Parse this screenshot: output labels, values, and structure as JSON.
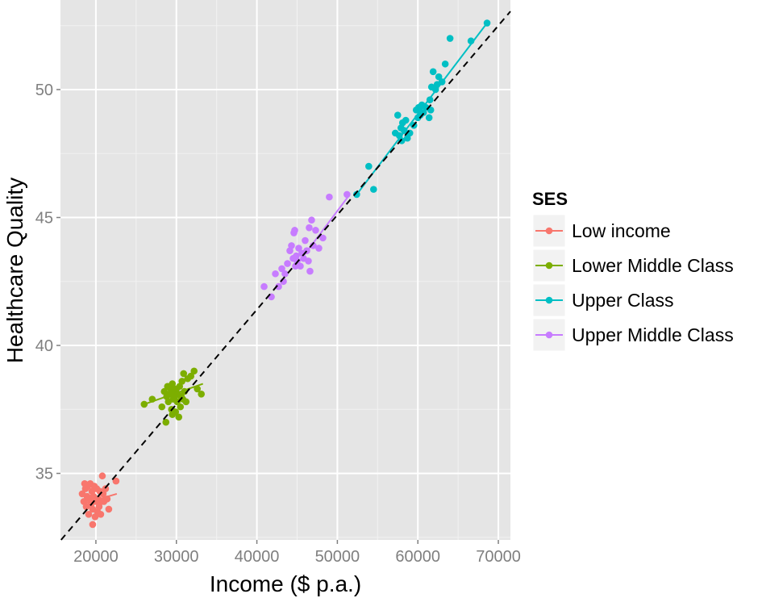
{
  "chart_data": {
    "type": "scatter",
    "title": "",
    "xlabel": "Income ($ p.a.)",
    "ylabel": "Healthcare Quality",
    "xlim": [
      15600,
      71500
    ],
    "ylim": [
      32.4,
      53.5
    ],
    "x_ticks": [
      20000,
      30000,
      40000,
      50000,
      60000,
      70000
    ],
    "y_ticks": [
      35,
      40,
      45,
      50
    ],
    "grid": true,
    "legend_title": "SES",
    "legend_position": "right",
    "reference_line": {
      "style": "dashed",
      "color": "#000000",
      "slope": 0.00037,
      "intercept": 26.6
    },
    "series": [
      {
        "name": "Low income",
        "color": "#F8766D",
        "points": [
          [
            18300,
            34.2
          ],
          [
            18500,
            33.9
          ],
          [
            18700,
            34.4
          ],
          [
            18800,
            33.7
          ],
          [
            18900,
            34.1
          ],
          [
            19000,
            34.5
          ],
          [
            19100,
            33.4
          ],
          [
            19200,
            34.0
          ],
          [
            19300,
            34.6
          ],
          [
            19400,
            33.8
          ],
          [
            19500,
            34.3
          ],
          [
            19600,
            33.6
          ],
          [
            19700,
            34.1
          ],
          [
            19800,
            34.5
          ],
          [
            19900,
            33.3
          ],
          [
            20000,
            33.9
          ],
          [
            20100,
            34.4
          ],
          [
            20200,
            33.5
          ],
          [
            20300,
            34.0
          ],
          [
            20400,
            33.7
          ],
          [
            20500,
            34.3
          ],
          [
            20600,
            33.4
          ],
          [
            20800,
            34.9
          ],
          [
            20900,
            34.2
          ],
          [
            21000,
            33.9
          ],
          [
            21200,
            34.4
          ],
          [
            21400,
            34.0
          ],
          [
            21600,
            33.6
          ],
          [
            22500,
            34.7
          ],
          [
            19600,
            33.0
          ],
          [
            18600,
            34.6
          ],
          [
            20700,
            33.9
          ]
        ],
        "fit": [
          [
            18300,
            33.8
          ],
          [
            22600,
            34.2
          ]
        ]
      },
      {
        "name": "Lower Middle Class",
        "color": "#7CAE00",
        "points": [
          [
            26000,
            37.7
          ],
          [
            27000,
            37.9
          ],
          [
            28200,
            37.6
          ],
          [
            28500,
            38.2
          ],
          [
            28700,
            37.0
          ],
          [
            28900,
            38.4
          ],
          [
            29000,
            37.8
          ],
          [
            29100,
            38.1
          ],
          [
            29300,
            38.3
          ],
          [
            29400,
            37.5
          ],
          [
            29500,
            38.5
          ],
          [
            29600,
            37.9
          ],
          [
            29700,
            38.2
          ],
          [
            29800,
            38.0
          ],
          [
            29900,
            37.4
          ],
          [
            30000,
            38.3
          ],
          [
            30100,
            37.8
          ],
          [
            30200,
            38.1
          ],
          [
            30300,
            37.2
          ],
          [
            30400,
            38.4
          ],
          [
            30500,
            37.6
          ],
          [
            30600,
            38.0
          ],
          [
            30700,
            38.6
          ],
          [
            30800,
            37.9
          ],
          [
            30900,
            38.9
          ],
          [
            31000,
            38.2
          ],
          [
            31200,
            37.8
          ],
          [
            31400,
            38.7
          ],
          [
            31800,
            38.8
          ],
          [
            32200,
            39.0
          ],
          [
            32600,
            38.3
          ],
          [
            33100,
            38.1
          ],
          [
            29500,
            37.3
          ],
          [
            28800,
            38.0
          ]
        ],
        "fit": [
          [
            26000,
            37.7
          ],
          [
            33300,
            38.5
          ]
        ]
      },
      {
        "name": "Upper Class",
        "color": "#00BFC4",
        "points": [
          [
            52400,
            45.9
          ],
          [
            53900,
            47.0
          ],
          [
            54500,
            46.1
          ],
          [
            57200,
            48.3
          ],
          [
            57500,
            49.0
          ],
          [
            57700,
            48.2
          ],
          [
            57900,
            48.5
          ],
          [
            58000,
            48.0
          ],
          [
            58100,
            48.7
          ],
          [
            58300,
            48.4
          ],
          [
            58500,
            48.8
          ],
          [
            58700,
            48.1
          ],
          [
            59000,
            48.3
          ],
          [
            59500,
            48.6
          ],
          [
            59800,
            49.2
          ],
          [
            60000,
            48.9
          ],
          [
            60100,
            49.3
          ],
          [
            60300,
            49.0
          ],
          [
            60500,
            49.4
          ],
          [
            60700,
            49.1
          ],
          [
            61000,
            49.3
          ],
          [
            61400,
            48.9
          ],
          [
            61500,
            49.6
          ],
          [
            61700,
            50.1
          ],
          [
            61900,
            50.7
          ],
          [
            62200,
            50.0
          ],
          [
            62600,
            50.5
          ],
          [
            63000,
            50.3
          ],
          [
            63400,
            51.0
          ],
          [
            64000,
            52.0
          ],
          [
            66600,
            51.9
          ],
          [
            68600,
            52.6
          ],
          [
            61600,
            49.2
          ],
          [
            62400,
            50.2
          ]
        ],
        "fit": [
          [
            52400,
            45.9
          ],
          [
            68600,
            52.6
          ]
        ]
      },
      {
        "name": "Upper Middle Class",
        "color": "#C77CFF",
        "points": [
          [
            40900,
            42.3
          ],
          [
            41800,
            41.9
          ],
          [
            42300,
            42.8
          ],
          [
            42700,
            42.3
          ],
          [
            43100,
            43.0
          ],
          [
            43300,
            42.5
          ],
          [
            43500,
            42.8
          ],
          [
            43800,
            43.2
          ],
          [
            44100,
            43.7
          ],
          [
            44300,
            43.9
          ],
          [
            44500,
            43.4
          ],
          [
            44600,
            44.4
          ],
          [
            44700,
            44.5
          ],
          [
            44800,
            43.1
          ],
          [
            44900,
            43.5
          ],
          [
            45000,
            43.3
          ],
          [
            45200,
            43.8
          ],
          [
            45400,
            43.1
          ],
          [
            45600,
            43.6
          ],
          [
            45800,
            43.4
          ],
          [
            46000,
            44.1
          ],
          [
            46200,
            43.7
          ],
          [
            46400,
            43.3
          ],
          [
            46500,
            44.6
          ],
          [
            46600,
            42.9
          ],
          [
            46800,
            44.9
          ],
          [
            47000,
            43.9
          ],
          [
            47300,
            44.5
          ],
          [
            47700,
            43.8
          ],
          [
            48200,
            44.2
          ],
          [
            49000,
            45.8
          ],
          [
            51200,
            45.9
          ]
        ],
        "fit": [
          [
            44600,
            43.0
          ],
          [
            51300,
            45.8
          ]
        ]
      }
    ]
  }
}
